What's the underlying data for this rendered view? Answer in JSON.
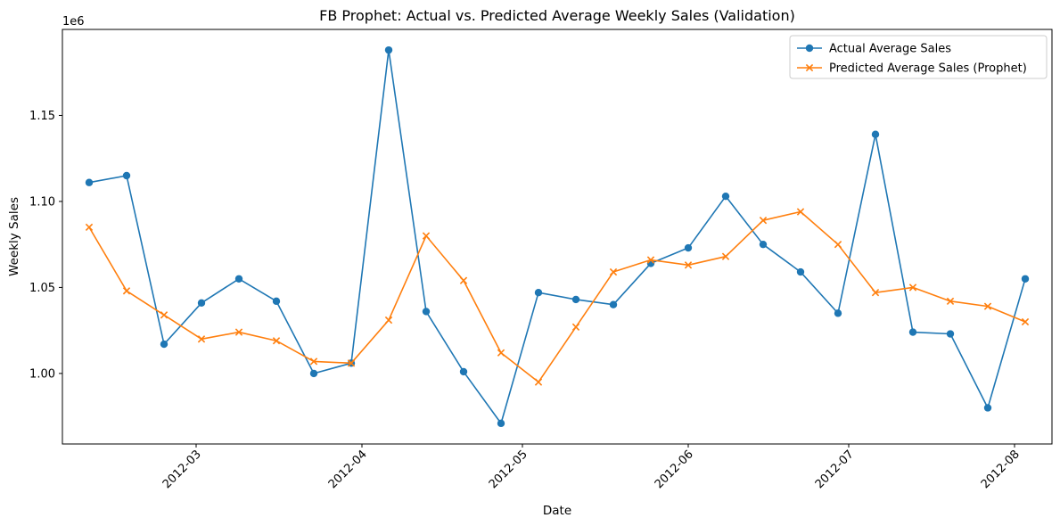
{
  "chart_data": {
    "type": "line",
    "title": "FB Prophet: Actual vs. Predicted Average Weekly Sales (Validation)",
    "xlabel": "Date",
    "ylabel": "Weekly Sales",
    "y_offset_label": "1e6",
    "y_multiplier": 1000000,
    "xlim": [
      "2012-02-05",
      "2012-08-08"
    ],
    "ylim": [
      0.959,
      1.2
    ],
    "x_ticks": [
      {
        "date": "2012-03-01",
        "label": "2012-03"
      },
      {
        "date": "2012-04-01",
        "label": "2012-04"
      },
      {
        "date": "2012-05-01",
        "label": "2012-05"
      },
      {
        "date": "2012-06-01",
        "label": "2012-06"
      },
      {
        "date": "2012-07-01",
        "label": "2012-07"
      },
      {
        "date": "2012-08-01",
        "label": "2012-08"
      }
    ],
    "y_ticks": [
      {
        "value": 1.0,
        "label": "1.00"
      },
      {
        "value": 1.05,
        "label": "1.05"
      },
      {
        "value": 1.1,
        "label": "1.10"
      },
      {
        "value": 1.15,
        "label": "1.15"
      }
    ],
    "grid": false,
    "legend_position": "top-right",
    "x": [
      "2012-02-10",
      "2012-02-17",
      "2012-02-24",
      "2012-03-02",
      "2012-03-09",
      "2012-03-16",
      "2012-03-23",
      "2012-03-30",
      "2012-04-06",
      "2012-04-13",
      "2012-04-20",
      "2012-04-27",
      "2012-05-04",
      "2012-05-11",
      "2012-05-18",
      "2012-05-25",
      "2012-06-01",
      "2012-06-08",
      "2012-06-15",
      "2012-06-22",
      "2012-06-29",
      "2012-07-06",
      "2012-07-13",
      "2012-07-20",
      "2012-07-27",
      "2012-08-03"
    ],
    "series": [
      {
        "name": "Actual Average Sales",
        "color": "#1f77b4",
        "marker": "circle",
        "values": [
          1.111,
          1.115,
          1.017,
          1.041,
          1.055,
          1.042,
          1.0,
          1.006,
          1.188,
          1.036,
          1.001,
          0.971,
          1.047,
          1.043,
          1.04,
          1.064,
          1.073,
          1.103,
          1.075,
          1.059,
          1.035,
          1.139,
          1.024,
          1.023,
          0.98,
          1.055
        ]
      },
      {
        "name": "Predicted Average Sales (Prophet)",
        "color": "#ff7f0e",
        "marker": "x",
        "values": [
          1.085,
          1.048,
          1.034,
          1.02,
          1.024,
          1.019,
          1.007,
          1.006,
          1.031,
          1.08,
          1.054,
          1.012,
          0.995,
          1.027,
          1.059,
          1.066,
          1.063,
          1.068,
          1.089,
          1.094,
          1.075,
          1.047,
          1.05,
          1.042,
          1.039,
          1.03
        ]
      }
    ]
  }
}
